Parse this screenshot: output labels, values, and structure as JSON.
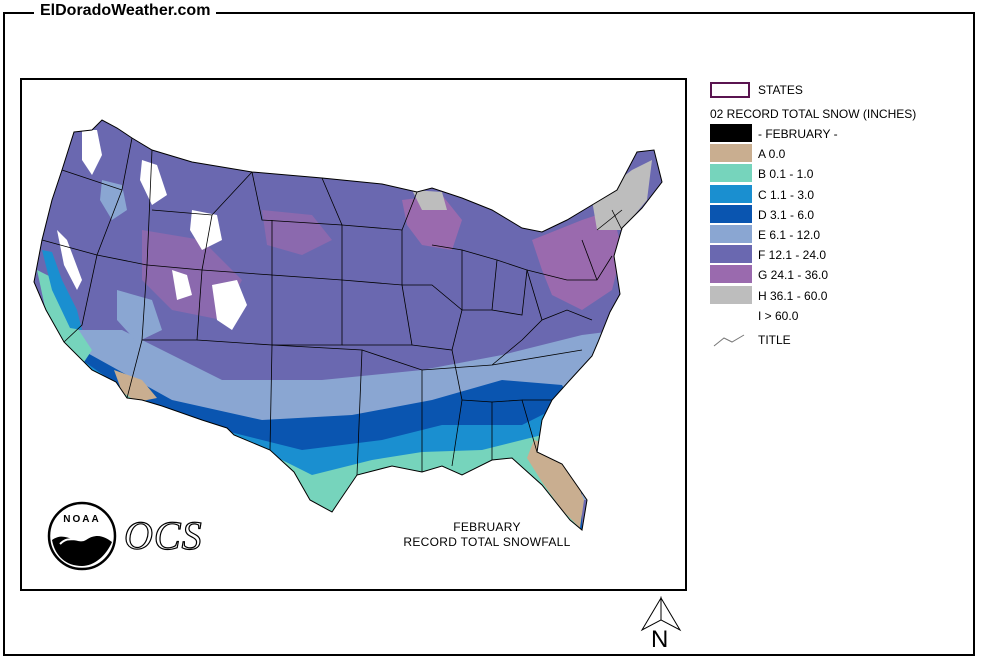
{
  "site": {
    "label": "ElDoradoWeather.com"
  },
  "map": {
    "title_line1": "FEBRUARY",
    "title_line2": "RECORD TOTAL SNOWFALL",
    "logo_noaa": "NOAA",
    "logo_ocs": "OCS"
  },
  "legend": {
    "states_label": "STATES",
    "variable_label": "02 RECORD TOTAL SNOW (INCHES)",
    "items": [
      {
        "code": "",
        "label": "- FEBRUARY -",
        "color": "#000000"
      },
      {
        "code": "A",
        "label": "A 0.0",
        "color": "#c9ae90"
      },
      {
        "code": "B",
        "label": "B 0.1 -  1.0",
        "color": "#76d4bc"
      },
      {
        "code": "C",
        "label": "C 1.1 -  3.0",
        "color": "#1a8fd0"
      },
      {
        "code": "D",
        "label": "D 3.1 -  6.0",
        "color": "#0a55b0"
      },
      {
        "code": "E",
        "label": "E 6.1 -  12.0",
        "color": "#8aa6d2"
      },
      {
        "code": "F",
        "label": "F 12.1 -  24.0",
        "color": "#6a68b0"
      },
      {
        "code": "G",
        "label": "G 24.1 -  36.0",
        "color": "#9a6aae"
      },
      {
        "code": "H",
        "label": "H 36.1 -  60.0",
        "color": "#bdbdbd"
      },
      {
        "code": "I",
        "label": "I  > 60.0",
        "color": "#ffffff"
      }
    ],
    "title_label": "TITLE"
  },
  "north_arrow": {
    "label": "N"
  }
}
